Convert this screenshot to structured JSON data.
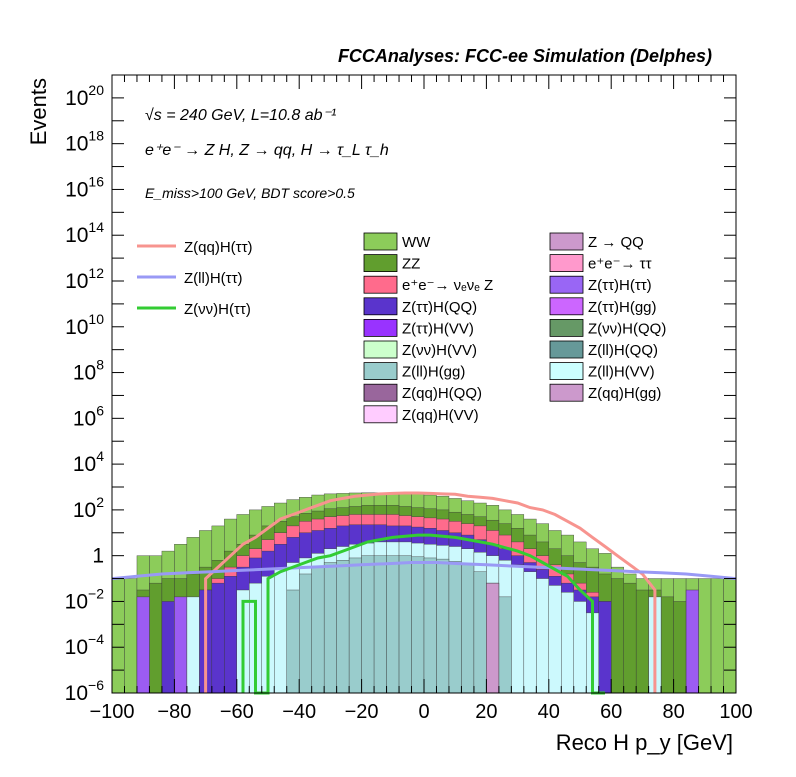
{
  "header": {
    "title": "FCCAnalyses: FCC-ee Simulation (Delphes)"
  },
  "annotations": {
    "line1": "√s = 240 GeV, L=10.8 ab⁻¹",
    "line2": "e⁺e⁻ → Z H, Z → qq, H → τ_L τ_h",
    "line3": "E_miss>100 GeV, BDT score>0.5"
  },
  "chart_data": {
    "type": "bar",
    "subtype": "stacked histogram (log y) with signal line overlays",
    "xlabel": "Reco H p_y [GeV]",
    "ylabel": "Events",
    "xlim": [
      -100,
      100
    ],
    "ylim_log10": [
      -6,
      21
    ],
    "log_y": true,
    "x_ticks": [
      "−100",
      "−80",
      "−60",
      "−40",
      "−20",
      "0",
      "20",
      "40",
      "60",
      "80",
      "100"
    ],
    "y_ticks": [
      {
        "mant": "10",
        "exp": "−6",
        "e": -6
      },
      {
        "mant": "10",
        "exp": "−4",
        "e": -4
      },
      {
        "mant": "10",
        "exp": "−2",
        "e": -2
      },
      {
        "mant": "1",
        "exp": "",
        "e": 0
      },
      {
        "mant": "10",
        "exp": "2",
        "e": 2
      },
      {
        "mant": "10",
        "exp": "4",
        "e": 4
      },
      {
        "mant": "10",
        "exp": "6",
        "e": 6
      },
      {
        "mant": "10",
        "exp": "8",
        "e": 8
      },
      {
        "mant": "10",
        "exp": "10",
        "e": 10
      },
      {
        "mant": "10",
        "exp": "12",
        "e": 12
      },
      {
        "mant": "10",
        "exp": "14",
        "e": 14
      },
      {
        "mant": "10",
        "exp": "16",
        "e": 16
      },
      {
        "mant": "10",
        "exp": "18",
        "e": 18
      },
      {
        "mant": "10",
        "exp": "20",
        "e": 20
      }
    ],
    "bin_width": 4,
    "bin_edges_start": -100,
    "stack_tops_log10": {
      "WW": [
        -1,
        -1,
        0,
        0,
        0.2,
        0.5,
        0.8,
        1.1,
        1.3,
        1.6,
        1.8,
        2.0,
        2.15,
        2.3,
        2.45,
        2.55,
        2.65,
        2.7,
        2.72,
        2.74,
        2.75,
        2.75,
        2.74,
        2.72,
        2.7,
        2.65,
        2.6,
        2.5,
        2.4,
        2.3,
        2.2,
        2.0,
        1.8,
        1.6,
        1.4,
        1.1,
        0.9,
        0.6,
        0.3,
        0.1,
        -0.5,
        -0.8,
        -1,
        -1,
        -1,
        -1,
        -1,
        -1,
        -1,
        -1
      ],
      "ZZ": [
        -6,
        -6,
        -1.5,
        -1.2,
        -1,
        -1,
        -0.8,
        -0.5,
        -0.2,
        0.2,
        0.5,
        0.9,
        1.3,
        1.5,
        1.7,
        1.85,
        1.95,
        2.05,
        2.1,
        2.15,
        2.2,
        2.2,
        2.2,
        2.15,
        2.1,
        2.05,
        2.0,
        1.9,
        1.8,
        1.7,
        1.55,
        1.4,
        1.2,
        0.9,
        0.6,
        0.3,
        0.0,
        -0.3,
        -0.5,
        -0.8,
        -1,
        -1.2,
        -1.5,
        -1.5,
        -1.8,
        -2,
        -6,
        -6,
        -6,
        -6
      ],
      "tt_nu": [
        -6,
        -6,
        -6,
        -6,
        -6,
        -6,
        -6,
        -1.5,
        -1,
        -0.5,
        0,
        0.3,
        0.7,
        1.0,
        1.3,
        1.5,
        1.6,
        1.7,
        1.75,
        1.8,
        1.8,
        1.8,
        1.8,
        1.75,
        1.7,
        1.65,
        1.6,
        1.5,
        1.4,
        1.3,
        1.1,
        0.9,
        0.6,
        0.3,
        0.0,
        -0.4,
        -0.8,
        -1.2,
        -1.6,
        -2,
        -6,
        -6,
        -6,
        -6,
        -6,
        -6,
        -6,
        -6,
        -6,
        -6
      ],
      "mid": [
        -6,
        -6,
        -6,
        -6,
        -2,
        -2,
        -2,
        -1.5,
        -1.2,
        -0.9,
        -0.5,
        -0.1,
        0.2,
        0.5,
        0.8,
        1.0,
        1.1,
        1.2,
        1.3,
        1.35,
        1.35,
        1.35,
        1.3,
        1.3,
        1.25,
        1.2,
        1.1,
        1.0,
        0.9,
        0.7,
        0.5,
        0.3,
        0.0,
        -0.3,
        -0.6,
        -0.9,
        -1.2,
        -1.5,
        -1.8,
        -2,
        -6,
        -6,
        -6,
        -6,
        -6,
        -6,
        -6,
        -6,
        -6,
        -6
      ],
      "cyan": [
        -6,
        -6,
        -6,
        -6,
        -6,
        -6,
        -6,
        -6,
        -6,
        -6,
        -1.5,
        -1.2,
        -0.9,
        -0.6,
        -0.3,
        -0.1,
        0.1,
        0.3,
        0.4,
        0.5,
        0.55,
        0.6,
        0.6,
        0.6,
        0.55,
        0.5,
        0.45,
        0.4,
        0.3,
        0.15,
        0.0,
        -0.2,
        -0.4,
        -0.7,
        -1.0,
        -1.3,
        -1.6,
        -2,
        -2.5,
        -6,
        -6,
        -6,
        -6,
        -6,
        -6,
        -6,
        -6,
        -6,
        -6,
        -6
      ],
      "teal": [
        -6,
        -6,
        -6,
        -6,
        -6,
        -6,
        -6,
        -6,
        -6,
        -6,
        -6,
        -6,
        -6,
        -6,
        -1.5,
        -0.8,
        -0.5,
        -0.3,
        -0.2,
        -0.1,
        0.0,
        0.0,
        0.0,
        0.0,
        -0.05,
        -0.1,
        -0.15,
        -0.25,
        -0.4,
        -0.7,
        -1.2,
        -1.8,
        -6,
        -6,
        -6,
        -6,
        -6,
        -6,
        -6,
        -6,
        -6,
        -6,
        -6,
        -6,
        -6,
        -6,
        -6,
        -6,
        -6,
        -6
      ]
    },
    "spikes": [
      {
        "x0": -92,
        "x1": -88,
        "top": -1.8,
        "color": "#9c5cf2",
        "name": "left-spike-purple-1"
      },
      {
        "x0": -80,
        "x1": -76,
        "top": -1.8,
        "color": "#9c5cf2",
        "name": "left-spike-purple-2"
      },
      {
        "x0": -76,
        "x1": -72,
        "top": -1.8,
        "color": "#ccf9fd",
        "name": "left-spike-cyan"
      },
      {
        "x0": 20,
        "x1": 24,
        "top": -1.2,
        "color": "#cc99cc",
        "name": "mid-spike-pink"
      },
      {
        "x0": 72,
        "x1": 76,
        "top": -1.8,
        "color": "#ccf9fd",
        "name": "right-spike-cyan"
      },
      {
        "x0": 84,
        "x1": 88,
        "top": -1.5,
        "color": "#9c5cf2",
        "name": "right-spike-purple"
      }
    ],
    "signals": [
      {
        "name": "Z(qq)H(ττ)",
        "color": "#f7948f",
        "x": [
          -70,
          -70,
          -66,
          -62,
          -58,
          -54,
          -50,
          -46,
          -42,
          -38,
          -34,
          -30,
          -26,
          -22,
          -18,
          -14,
          -10,
          -6,
          -2,
          2,
          6,
          10,
          14,
          18,
          22,
          26,
          30,
          34,
          38,
          42,
          46,
          50,
          54,
          58,
          62,
          66,
          70,
          74,
          74
        ],
        "y": [
          -6,
          -1,
          -0.5,
          0,
          0.5,
          0.8,
          1.2,
          1.6,
          1.8,
          2.0,
          2.2,
          2.4,
          2.5,
          2.6,
          2.65,
          2.7,
          2.72,
          2.74,
          2.74,
          2.72,
          2.7,
          2.68,
          2.6,
          2.55,
          2.5,
          2.4,
          2.3,
          2.1,
          2.0,
          1.8,
          1.5,
          1.2,
          0.8,
          0.4,
          0.0,
          -0.4,
          -0.8,
          -1.5,
          -6
        ]
      },
      {
        "name": "Z(ll)H(ττ)",
        "color": "#9999f5",
        "x": [
          -100,
          -92,
          -84,
          -76,
          -68,
          -60,
          -52,
          -44,
          -36,
          -28,
          -20,
          -12,
          -4,
          4,
          12,
          20,
          28,
          36,
          44,
          52,
          60,
          68,
          76,
          84,
          92,
          100
        ],
        "y": [
          -1.0,
          -0.9,
          -0.8,
          -0.75,
          -0.7,
          -0.65,
          -0.6,
          -0.55,
          -0.5,
          -0.45,
          -0.4,
          -0.35,
          -0.3,
          -0.3,
          -0.35,
          -0.4,
          -0.45,
          -0.5,
          -0.55,
          -0.6,
          -0.65,
          -0.7,
          -0.75,
          -0.8,
          -0.9,
          -1.0
        ]
      },
      {
        "name": "Z(νν)H(ττ)",
        "color": "#33cc33",
        "x": [
          -58,
          -58,
          -54,
          -54,
          -50,
          -50,
          -46,
          -42,
          -38,
          -34,
          -30,
          -26,
          -22,
          -18,
          -14,
          -10,
          -6,
          -2,
          2,
          6,
          10,
          14,
          18,
          22,
          26,
          30,
          34,
          38,
          42,
          46,
          50,
          54,
          54,
          58,
          58
        ],
        "y": [
          -6,
          -2,
          -2,
          -6,
          -6,
          -1,
          -0.7,
          -0.5,
          -0.3,
          -0.1,
          0.0,
          0.2,
          0.4,
          0.6,
          0.7,
          0.8,
          0.85,
          0.9,
          0.9,
          0.85,
          0.8,
          0.7,
          0.6,
          0.5,
          0.35,
          0.2,
          0.0,
          -0.3,
          -0.6,
          -0.9,
          -1.5,
          -2,
          -6,
          -6,
          -6
        ]
      }
    ],
    "legend_lines": [
      {
        "label": "Z(qq)H(ττ)",
        "color": "#f7948f"
      },
      {
        "label": "Z(ll)H(ττ)",
        "color": "#9999f5"
      },
      {
        "label": "Z(νν)H(ττ)",
        "color": "#33cc33"
      }
    ],
    "legend_boxes_col1": [
      {
        "label": "WW",
        "color": "#8ccc5a"
      },
      {
        "label": "ZZ",
        "color": "#619e2e"
      },
      {
        "label": "e⁺e⁻→ νₑνₑ Z",
        "color": "#ff6b8c"
      },
      {
        "label": "Z(ττ)H(QQ)",
        "color": "#5a34cc"
      },
      {
        "label": "Z(ττ)H(VV)",
        "color": "#9933ff"
      },
      {
        "label": "Z(νν)H(VV)",
        "color": "#ccffcc"
      },
      {
        "label": "Z(ll)H(gg)",
        "color": "#99cccc"
      },
      {
        "label": "Z(qq)H(QQ)",
        "color": "#99669c"
      },
      {
        "label": "Z(qq)H(VV)",
        "color": "#ffccff"
      }
    ],
    "legend_boxes_col2": [
      {
        "label": "Z → QQ",
        "color": "#cc99cc"
      },
      {
        "label": "e⁺e⁻→ ττ",
        "color": "#ff99cc"
      },
      {
        "label": "Z(ττ)H(ττ)",
        "color": "#9966f5"
      },
      {
        "label": "Z(ττ)H(gg)",
        "color": "#cc66ff"
      },
      {
        "label": "Z(νν)H(QQ)",
        "color": "#669966"
      },
      {
        "label": "Z(ll)H(QQ)",
        "color": "#669999"
      },
      {
        "label": "Z(ll)H(VV)",
        "color": "#ccffff"
      },
      {
        "label": "Z(qq)H(gg)",
        "color": "#cc99cc"
      }
    ]
  }
}
